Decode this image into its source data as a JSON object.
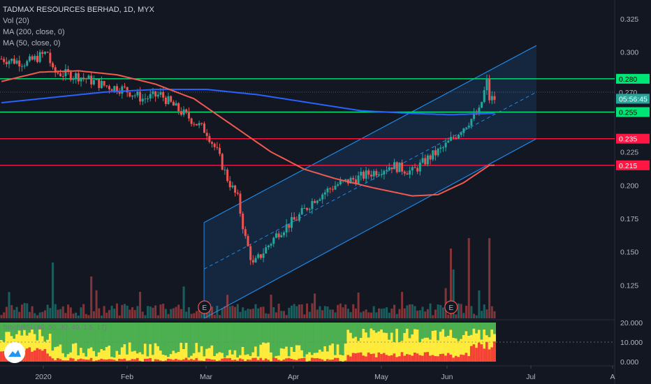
{
  "header": {
    "symbol_line": "TADMAX RESOURCES BERHAD, 1D, MYX",
    "studies": [
      "Vol (20)",
      "MA (200, close, 0)",
      "MA (50, close, 0)"
    ],
    "oscillator_label": "StochRSI (40, 50, 30, 40, 1.5, 17)"
  },
  "colors": {
    "background": "#131722",
    "up": "#26a69a",
    "down": "#ef5350",
    "ma200": "#2962ff",
    "ma50": "#f05a50",
    "support_green": "#00e676",
    "resistance_red": "#ff1744",
    "channel": "#1e88e5",
    "osc_yellow": "#ffeb3b",
    "osc_green": "#4caf50",
    "osc_red": "#f44336"
  },
  "price_axis": {
    "ticks": [
      "0.325",
      "0.300",
      "0.280",
      "0.270",
      "0.255",
      "0.235",
      "0.225",
      "0.215",
      "0.200",
      "0.175",
      "0.150",
      "0.125"
    ],
    "tick_values": [
      0.325,
      0.3,
      0.28,
      0.27,
      0.255,
      0.235,
      0.225,
      0.215,
      0.2,
      0.175,
      0.15,
      0.125
    ],
    "price_labels": [
      {
        "text": "0.280",
        "value": 0.28,
        "color": "#00e676",
        "text_color": "#000000"
      },
      {
        "text": "0.270",
        "value": 0.27,
        "color": "#131722",
        "text_color": "#b2b5be"
      },
      {
        "text": "05:56:45",
        "value": 0.265,
        "color": "#26a69a",
        "text_color": "#ffffff"
      },
      {
        "text": "0.255",
        "value": 0.255,
        "color": "#00e676",
        "text_color": "#000000"
      },
      {
        "text": "0.235",
        "value": 0.235,
        "color": "#ff1744",
        "text_color": "#ffffff"
      },
      {
        "text": "0.215",
        "value": 0.215,
        "color": "#ff1744",
        "text_color": "#ffffff"
      }
    ]
  },
  "osc_axis": {
    "ticks": [
      "20.000",
      "10.000",
      "0.000"
    ],
    "values": [
      20,
      10,
      0
    ]
  },
  "time_axis": [
    "2020",
    "Feb",
    "Mar",
    "Apr",
    "May",
    "Jun",
    "Jul",
    "A"
  ],
  "events": [
    "E",
    "E"
  ],
  "chart_data": {
    "type": "candlestick",
    "ylim": [
      0.1,
      0.335
    ],
    "horizontal_lines": [
      {
        "value": 0.28,
        "color": "#00e676"
      },
      {
        "value": 0.27,
        "color": "#787b86"
      },
      {
        "value": 0.255,
        "color": "#00e676"
      },
      {
        "value": 0.235,
        "color": "#ff1744"
      },
      {
        "value": 0.215,
        "color": "#ff1744"
      }
    ],
    "channel": {
      "start_index": 74,
      "end_index": 192,
      "upper": [
        0.172,
        0.305
      ],
      "middle": [
        0.137,
        0.27
      ],
      "lower": [
        0.1,
        0.235
      ]
    },
    "candles_note": "daily OHLC generated from price path",
    "path": [
      [
        0,
        0.295
      ],
      [
        10,
        0.292
      ],
      [
        18,
        0.3
      ],
      [
        20,
        0.285
      ],
      [
        30,
        0.282
      ],
      [
        40,
        0.275
      ],
      [
        48,
        0.272
      ],
      [
        55,
        0.265
      ],
      [
        62,
        0.268
      ],
      [
        68,
        0.258
      ],
      [
        75,
        0.248
      ],
      [
        80,
        0.24
      ],
      [
        84,
        0.225
      ],
      [
        88,
        0.205
      ],
      [
        92,
        0.19
      ],
      [
        95,
        0.16
      ],
      [
        98,
        0.14
      ],
      [
        102,
        0.15
      ],
      [
        108,
        0.165
      ],
      [
        115,
        0.175
      ],
      [
        122,
        0.19
      ],
      [
        130,
        0.2
      ],
      [
        138,
        0.205
      ],
      [
        145,
        0.21
      ],
      [
        152,
        0.215
      ],
      [
        160,
        0.21
      ],
      [
        166,
        0.22
      ],
      [
        172,
        0.228
      ],
      [
        178,
        0.24
      ],
      [
        182,
        0.248
      ],
      [
        186,
        0.255
      ],
      [
        189,
        0.278
      ],
      [
        190,
        0.265
      ]
    ],
    "ma200_path": [
      [
        0,
        0.262
      ],
      [
        20,
        0.266
      ],
      [
        40,
        0.27
      ],
      [
        60,
        0.272
      ],
      [
        80,
        0.272
      ],
      [
        100,
        0.268
      ],
      [
        120,
        0.262
      ],
      [
        140,
        0.256
      ],
      [
        160,
        0.254
      ],
      [
        175,
        0.253
      ],
      [
        190,
        0.254
      ]
    ],
    "ma50_path": [
      [
        0,
        0.278
      ],
      [
        15,
        0.285
      ],
      [
        30,
        0.286
      ],
      [
        45,
        0.283
      ],
      [
        60,
        0.276
      ],
      [
        75,
        0.265
      ],
      [
        90,
        0.245
      ],
      [
        105,
        0.225
      ],
      [
        118,
        0.212
      ],
      [
        130,
        0.205
      ],
      [
        145,
        0.198
      ],
      [
        160,
        0.192
      ],
      [
        170,
        0.193
      ],
      [
        180,
        0.202
      ],
      [
        190,
        0.215
      ]
    ]
  }
}
